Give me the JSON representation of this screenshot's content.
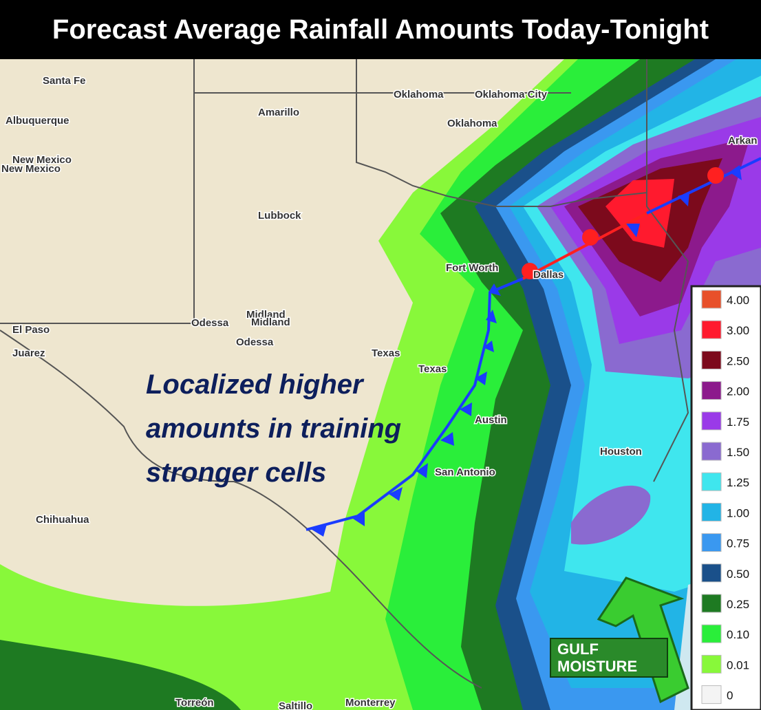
{
  "header": {
    "title": "Forecast Average Rainfall Amounts Today-Tonight"
  },
  "annotation": {
    "lines": [
      "Localized higher",
      "amounts in training",
      "stronger cells"
    ]
  },
  "badge": {
    "lines": [
      "GULF",
      "MOISTURE"
    ]
  },
  "legend": {
    "items": [
      {
        "label": "4.00",
        "color": "#e8502a"
      },
      {
        "label": "3.00",
        "color": "#ff1a2e"
      },
      {
        "label": "2.50",
        "color": "#7c0a1c"
      },
      {
        "label": "2.00",
        "color": "#8c1a8c"
      },
      {
        "label": "1.75",
        "color": "#9a3ae8"
      },
      {
        "label": "1.50",
        "color": "#8a6ad0"
      },
      {
        "label": "1.25",
        "color": "#3fe6ee"
      },
      {
        "label": "1.00",
        "color": "#22b4e6"
      },
      {
        "label": "0.75",
        "color": "#3a98f0"
      },
      {
        "label": "0.50",
        "color": "#1a508a"
      },
      {
        "label": "0.25",
        "color": "#1e7a22"
      },
      {
        "label": "0.10",
        "color": "#2aee3a"
      },
      {
        "label": "0.01",
        "color": "#88f83a"
      },
      {
        "label": "0",
        "color": "#f4f4f4"
      }
    ]
  },
  "map": {
    "labels": [
      "Santa Fe",
      "Albuquerque",
      "New Mexico",
      "New Mexico",
      "Amarillo",
      "Oklahoma",
      "Oklahoma City",
      "Oklahoma",
      "Lubbock",
      "Fort Worth",
      "Dallas",
      "Midland",
      "Midland",
      "Odessa",
      "Odessa",
      "El Paso",
      "Juarez",
      "Texas",
      "Texas",
      "Austin",
      "San Antonio",
      "Houston",
      "Chihuahua",
      "Torreón",
      "Saltillo",
      "Monterrey",
      "Arkan"
    ]
  }
}
